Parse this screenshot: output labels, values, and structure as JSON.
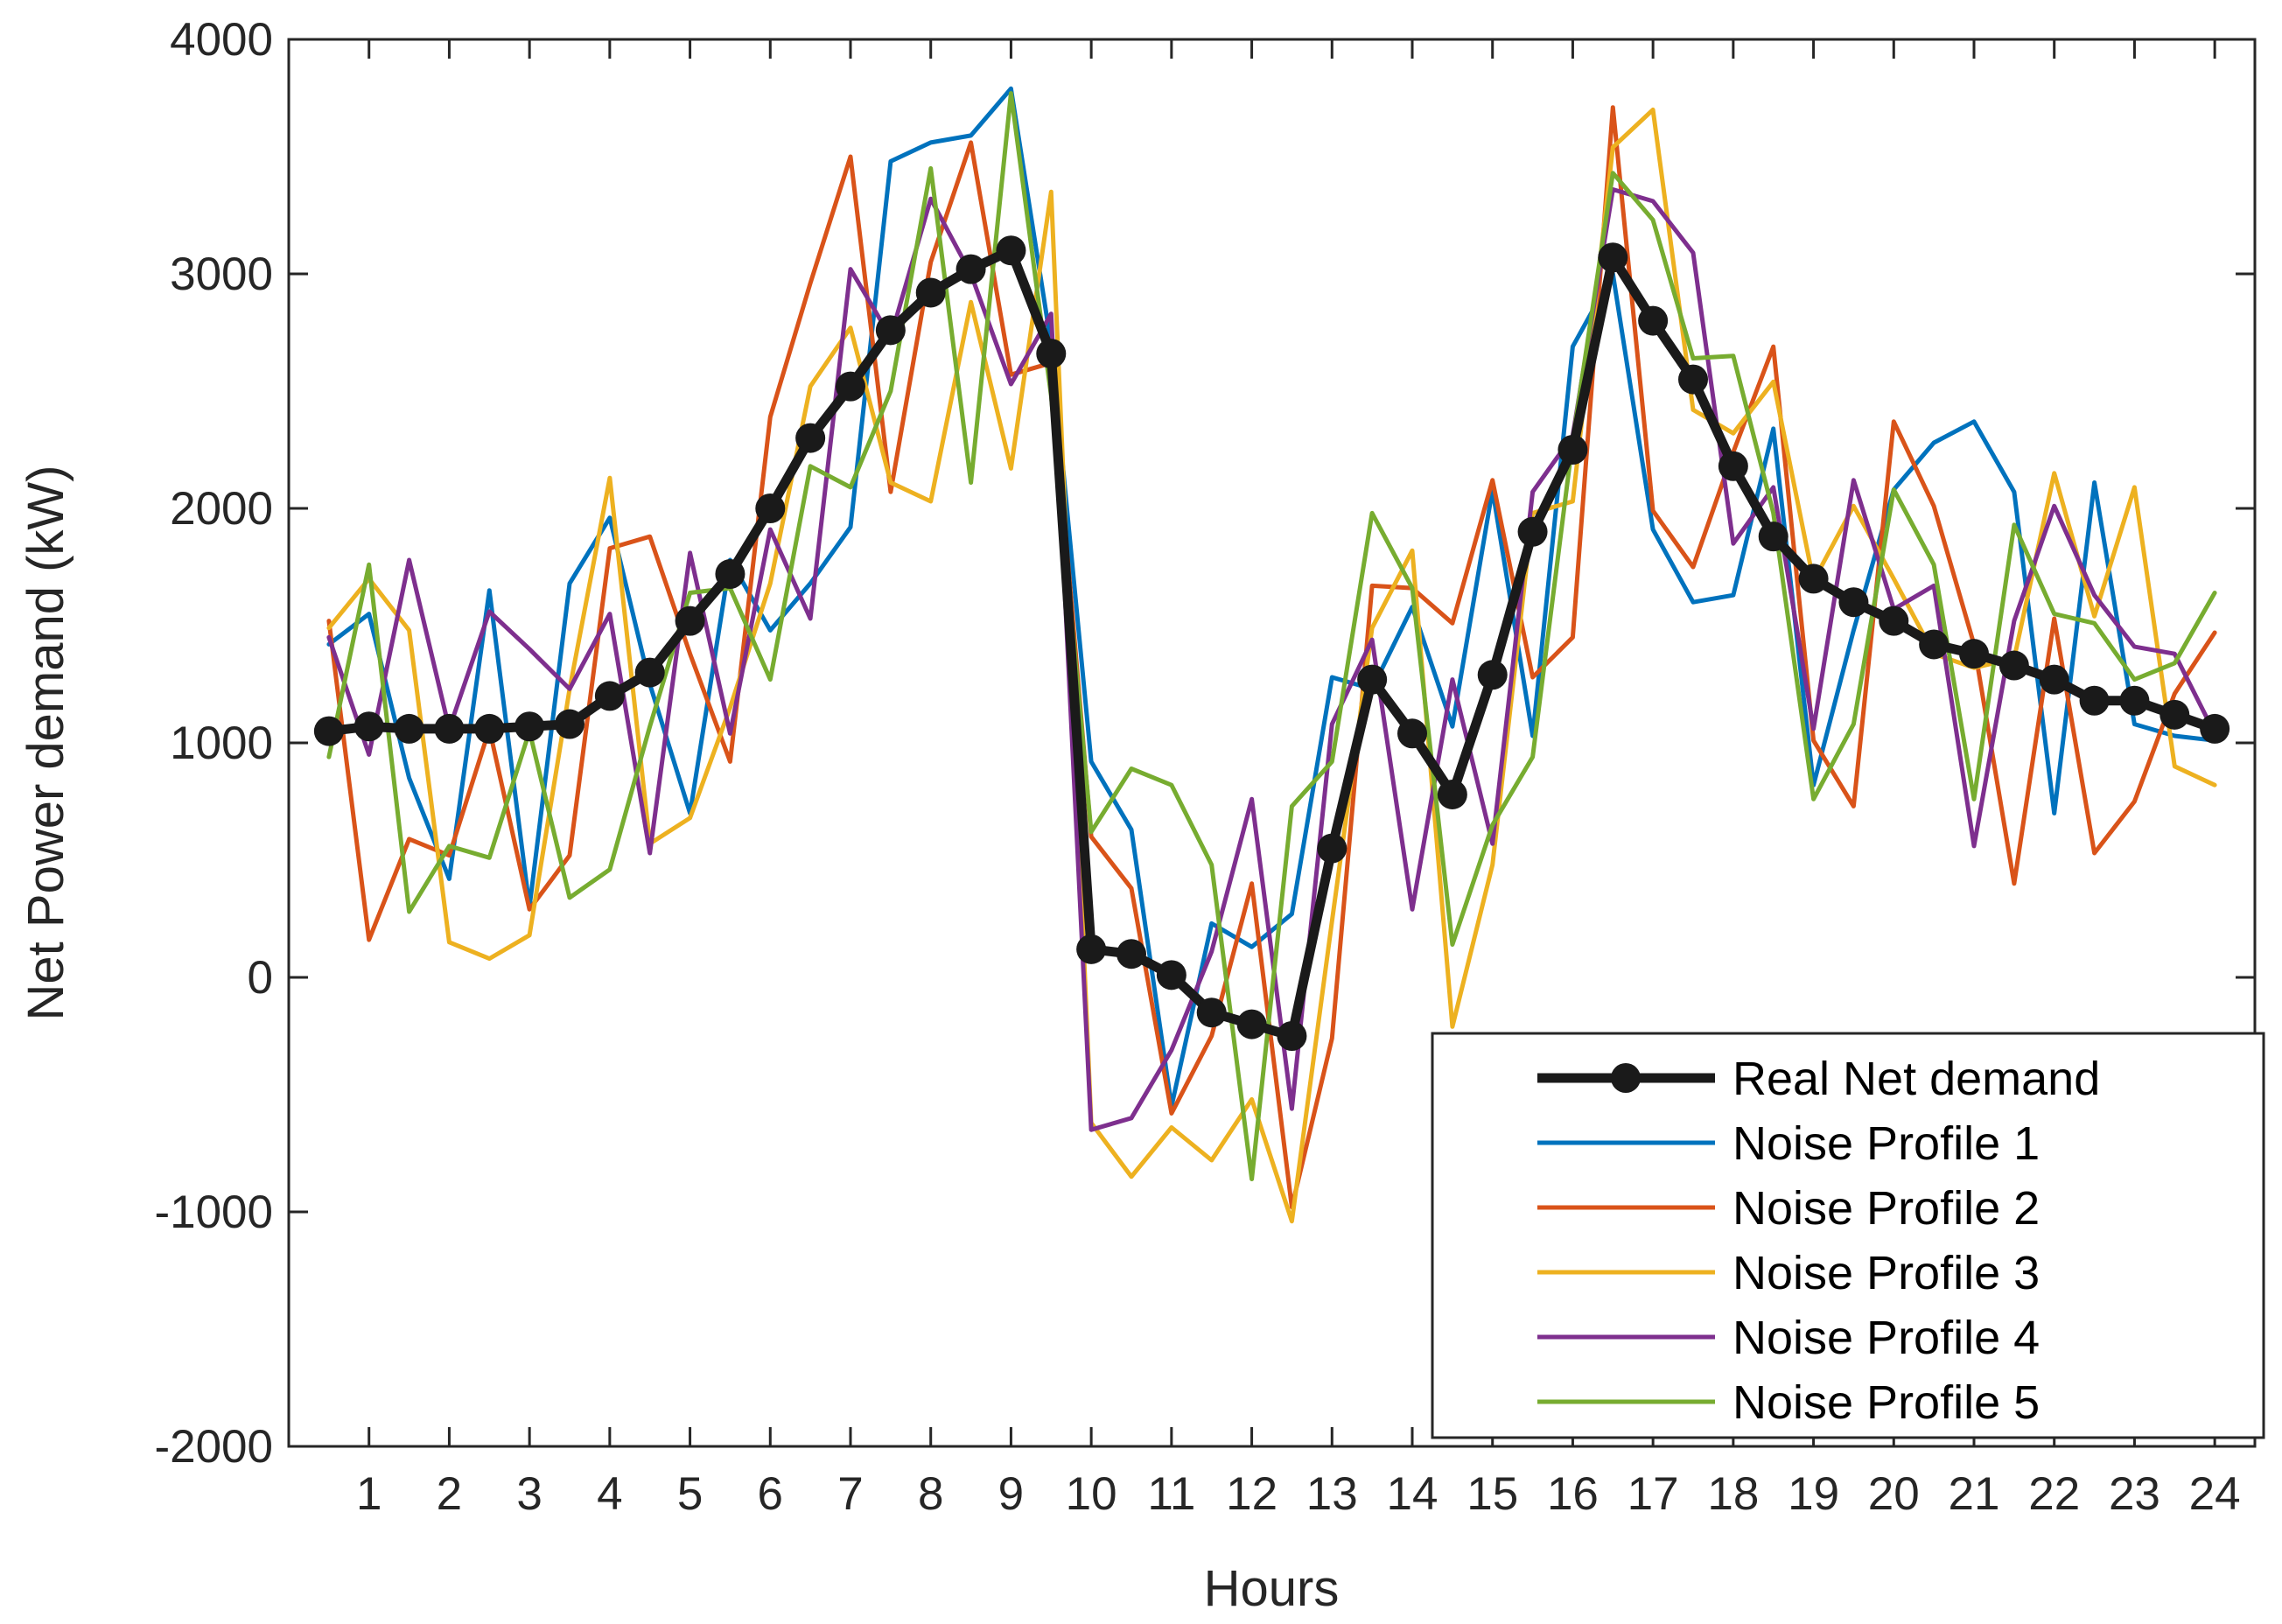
{
  "chart_data": {
    "type": "line",
    "title": "",
    "xlabel": "Hours",
    "ylabel": "Net Power demand (kW)",
    "xlim": [
      0,
      24.5
    ],
    "ylim": [
      -2000,
      4000
    ],
    "xticks": [
      1,
      2,
      3,
      4,
      5,
      6,
      7,
      8,
      9,
      10,
      11,
      12,
      13,
      14,
      15,
      16,
      17,
      18,
      19,
      20,
      21,
      22,
      23,
      24
    ],
    "yticks": [
      -2000,
      -1000,
      0,
      1000,
      2000,
      3000,
      4000
    ],
    "grid": false,
    "legend_position": "bottom-right",
    "x": [
      0.5,
      1,
      1.5,
      2,
      2.5,
      3,
      3.5,
      4,
      4.5,
      5,
      5.5,
      6,
      6.5,
      7,
      7.5,
      8,
      8.5,
      9,
      9.5,
      10,
      10.5,
      11,
      11.5,
      12,
      12.5,
      13,
      13.5,
      14,
      14.5,
      15,
      15.5,
      16,
      16.5,
      17,
      17.5,
      18,
      18.5,
      19,
      19.5,
      20,
      20.5,
      21,
      21.5,
      22,
      22.5,
      23,
      23.5,
      24
    ],
    "series": [
      {
        "name": "Real Net demand",
        "color": "#1a1a1a",
        "marker": "circle",
        "values": [
          1050,
          1070,
          1060,
          1060,
          1060,
          1070,
          1080,
          1200,
          1300,
          1520,
          1720,
          2000,
          2300,
          2520,
          2760,
          2920,
          3020,
          3100,
          2660,
          120,
          100,
          10,
          -150,
          -200,
          -250,
          550,
          1270,
          1040,
          780,
          1290,
          1900,
          2250,
          3070,
          2800,
          2550,
          2180,
          1880,
          1700,
          1600,
          1520,
          1420,
          1380,
          1330,
          1270,
          1180,
          1180,
          1120,
          1060
        ]
      },
      {
        "name": "Noise Profile 1",
        "color": "#0072BD",
        "values": [
          1420,
          1550,
          850,
          420,
          1650,
          300,
          1680,
          1960,
          1250,
          700,
          1780,
          1480,
          1680,
          1920,
          3480,
          3560,
          3590,
          3790,
          2700,
          920,
          630,
          -550,
          230,
          130,
          270,
          1280,
          1230,
          1580,
          1070,
          2080,
          1030,
          2690,
          3000,
          1910,
          1600,
          1630,
          2340,
          820,
          1480,
          2080,
          2280,
          2370,
          2070,
          700,
          2110,
          1080,
          1030,
          1010
        ]
      },
      {
        "name": "Noise Profile 2",
        "color": "#D95319",
        "values": [
          1520,
          160,
          590,
          520,
          1060,
          290,
          520,
          1830,
          1880,
          1380,
          920,
          2390,
          2960,
          3500,
          2070,
          3050,
          3560,
          2570,
          2620,
          600,
          380,
          -580,
          -250,
          400,
          -980,
          -260,
          1670,
          1660,
          1510,
          2120,
          1280,
          1450,
          3710,
          1990,
          1750,
          2240,
          2690,
          1010,
          730,
          2370,
          2010,
          1420,
          400,
          1530,
          530,
          750,
          1210,
          1470
        ]
      },
      {
        "name": "Noise Profile 3",
        "color": "#EDB120",
        "values": [
          1490,
          1700,
          1480,
          150,
          80,
          180,
          1230,
          2130,
          570,
          680,
          1150,
          1680,
          2520,
          2770,
          2110,
          2030,
          2880,
          2170,
          3350,
          -620,
          -850,
          -640,
          -780,
          -520,
          -1040,
          240,
          1490,
          1820,
          -210,
          480,
          1980,
          2030,
          3540,
          3700,
          2420,
          2320,
          2540,
          1690,
          2010,
          1700,
          1380,
          1320,
          1360,
          2150,
          1540,
          2090,
          900,
          820
        ]
      },
      {
        "name": "Noise Profile 4",
        "color": "#7E2F8E",
        "values": [
          1450,
          950,
          1780,
          1060,
          1560,
          1400,
          1230,
          1550,
          530,
          1810,
          1040,
          1910,
          1530,
          3020,
          2730,
          3320,
          3000,
          2530,
          2830,
          -650,
          -600,
          -310,
          110,
          760,
          -560,
          1080,
          1440,
          290,
          1270,
          570,
          2070,
          2310,
          3360,
          3310,
          3090,
          1850,
          2090,
          1060,
          2120,
          1570,
          1670,
          560,
          1520,
          2010,
          1630,
          1410,
          1380,
          1040
        ]
      },
      {
        "name": "Noise Profile 5",
        "color": "#77AC30",
        "values": [
          940,
          1760,
          280,
          560,
          510,
          1050,
          340,
          460,
          1070,
          1640,
          1660,
          1270,
          2180,
          2090,
          2500,
          3450,
          2110,
          3770,
          2480,
          620,
          890,
          820,
          480,
          -860,
          730,
          920,
          1980,
          1660,
          140,
          650,
          940,
          2290,
          3430,
          3230,
          2640,
          2650,
          1980,
          760,
          1080,
          2080,
          1760,
          760,
          1930,
          1550,
          1510,
          1270,
          1340,
          1640
        ]
      }
    ]
  }
}
